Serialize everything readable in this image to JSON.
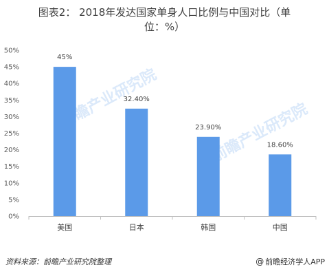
{
  "title": {
    "line1": "图表2： 2018年发达国家单身人口比例与中国对比（单",
    "line2": "位：%）"
  },
  "colors": {
    "bar": "#5b9ae8",
    "axis": "#bfbfbf",
    "watermark": "#7fb2ef"
  },
  "chart_data": {
    "type": "bar",
    "title": "2018年发达国家单身人口比例与中国对比（单位：%）",
    "categories": [
      "美国",
      "日本",
      "韩国",
      "中国"
    ],
    "values": [
      45,
      32.4,
      23.9,
      18.6
    ],
    "data_labels": [
      "45%",
      "32.40%",
      "23.90%",
      "18.60%"
    ],
    "ylim": [
      0,
      50
    ],
    "ytick_labels": [
      "0%",
      "5%",
      "10%",
      "15%",
      "20%",
      "25%",
      "30%",
      "35%",
      "40%",
      "45%",
      "50%"
    ],
    "grid": false,
    "xlabel": "",
    "ylabel": ""
  },
  "watermark": {
    "text": "前瞻产业研究院"
  },
  "footer": {
    "source": "资料来源：前瞻产业研究院整理",
    "brand_icon": "at-sign-icon",
    "brand_text": "前瞻经济学人APP"
  }
}
